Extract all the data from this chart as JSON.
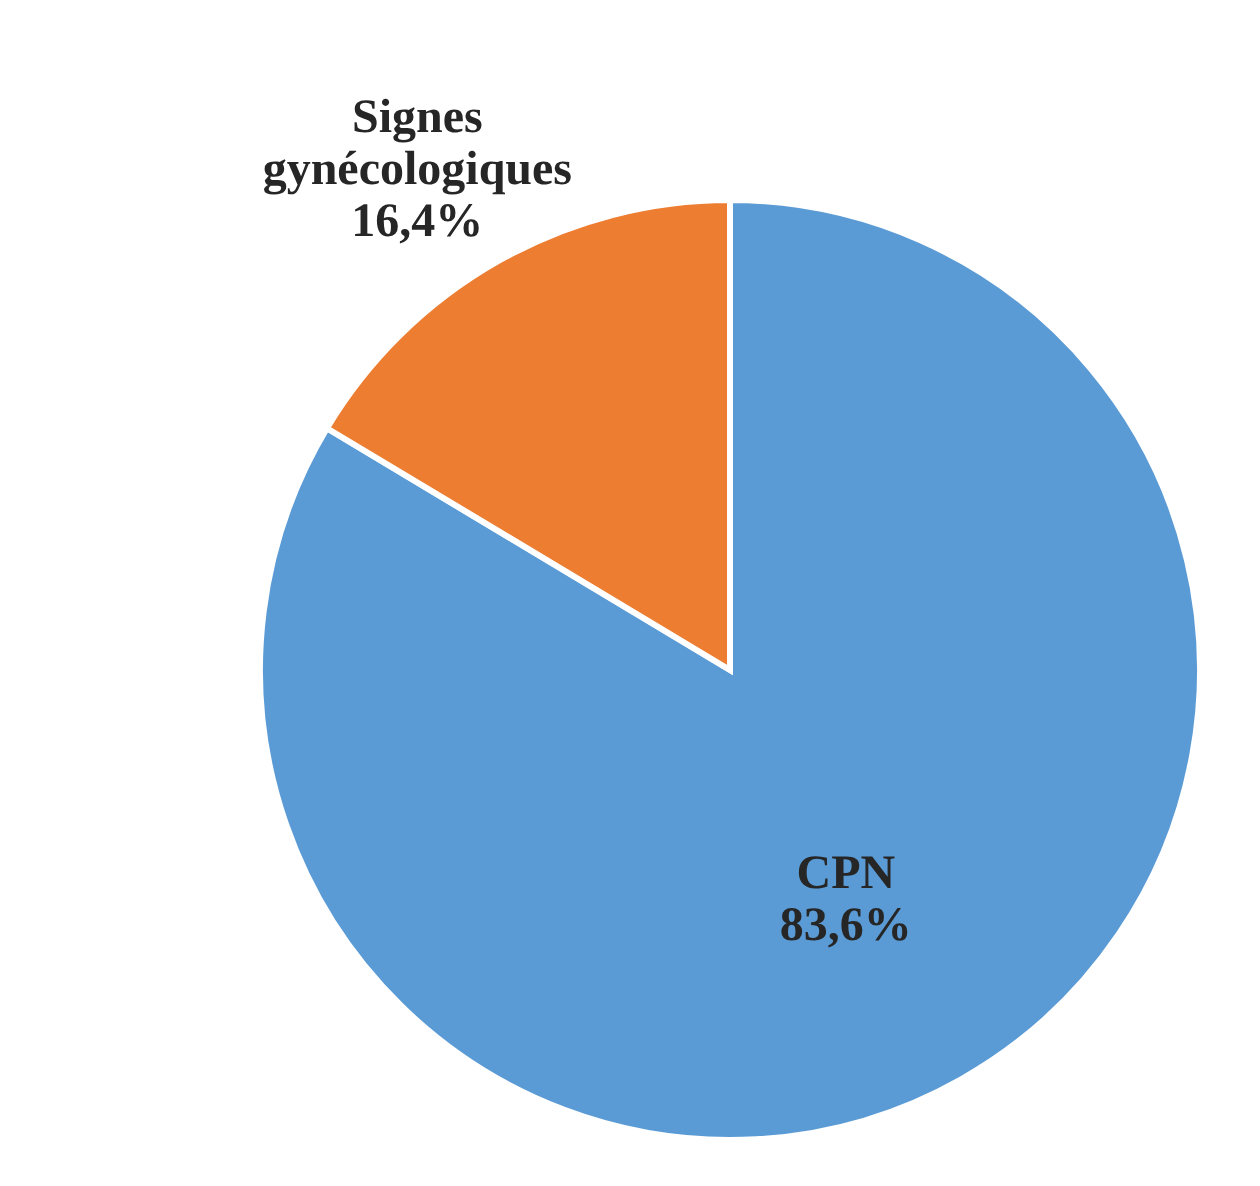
{
  "chart_data": {
    "type": "pie",
    "categories": [
      "CPN",
      "Signes gynécologiques"
    ],
    "values": [
      83.6,
      16.4
    ],
    "colors": [
      "#5b9bd5",
      "#ed7d31"
    ],
    "value_labels": [
      "83,6%",
      "16,4%"
    ],
    "legend": false
  }
}
